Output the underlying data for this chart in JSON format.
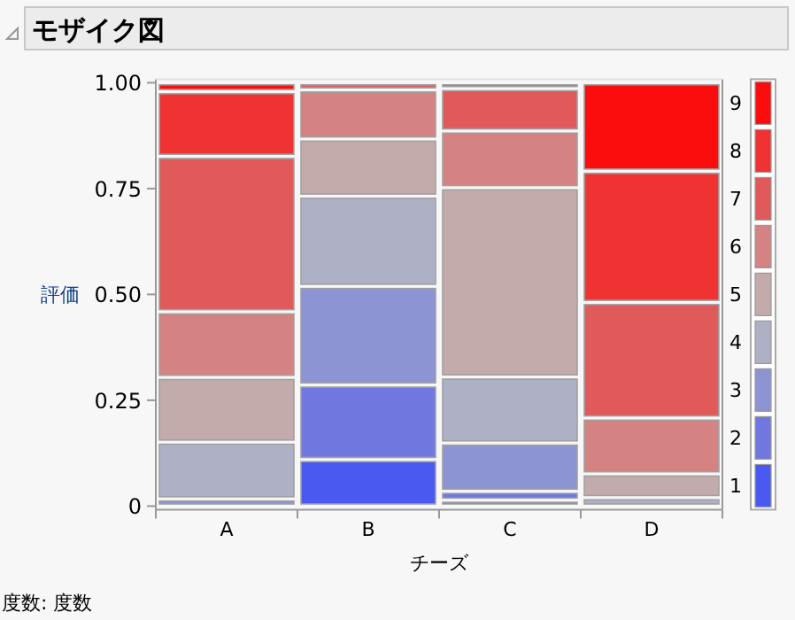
{
  "chart_data": {
    "type": "bar",
    "stacked": true,
    "title": "モザイク図",
    "xlabel": "チーズ",
    "ylabel": "評価",
    "annotations": [
      "度数: 度数"
    ],
    "categories": [
      "A",
      "B",
      "C",
      "D"
    ],
    "ylim": [
      0,
      1
    ],
    "yticks": [
      {
        "value": 0,
        "label": "0"
      },
      {
        "value": 0.25,
        "label": "0.25"
      },
      {
        "value": 0.5,
        "label": "0.50"
      },
      {
        "value": 0.75,
        "label": "0.75"
      },
      {
        "value": 1,
        "label": "1.00"
      }
    ],
    "legend": "right",
    "series": [
      {
        "name": "1",
        "color": "#4a5af0",
        "values": [
          0,
          0.11,
          0.014,
          0
        ]
      },
      {
        "name": "2",
        "color": "#7078e0",
        "values": [
          0,
          0.176,
          0.021,
          0
        ]
      },
      {
        "name": "3",
        "color": "#8c94d4",
        "values": [
          0.017,
          0.233,
          0.114,
          0
        ]
      },
      {
        "name": "4",
        "color": "#aeb0c6",
        "values": [
          0.134,
          0.213,
          0.156,
          0.02
        ]
      },
      {
        "name": "5",
        "color": "#c4abab",
        "values": [
          0.153,
          0.135,
          0.447,
          0.056
        ]
      },
      {
        "name": "6",
        "color": "#d48282",
        "values": [
          0.155,
          0.116,
          0.134,
          0.132
        ]
      },
      {
        "name": "7",
        "color": "#e05a5a",
        "values": [
          0.367,
          0.017,
          0.1,
          0.273
        ]
      },
      {
        "name": "8",
        "color": "#ef3333",
        "values": [
          0.153,
          0,
          0.014,
          0.31
        ]
      },
      {
        "name": "9",
        "color": "#fc0d0d",
        "values": [
          0.021,
          0,
          0,
          0.209
        ]
      }
    ]
  }
}
